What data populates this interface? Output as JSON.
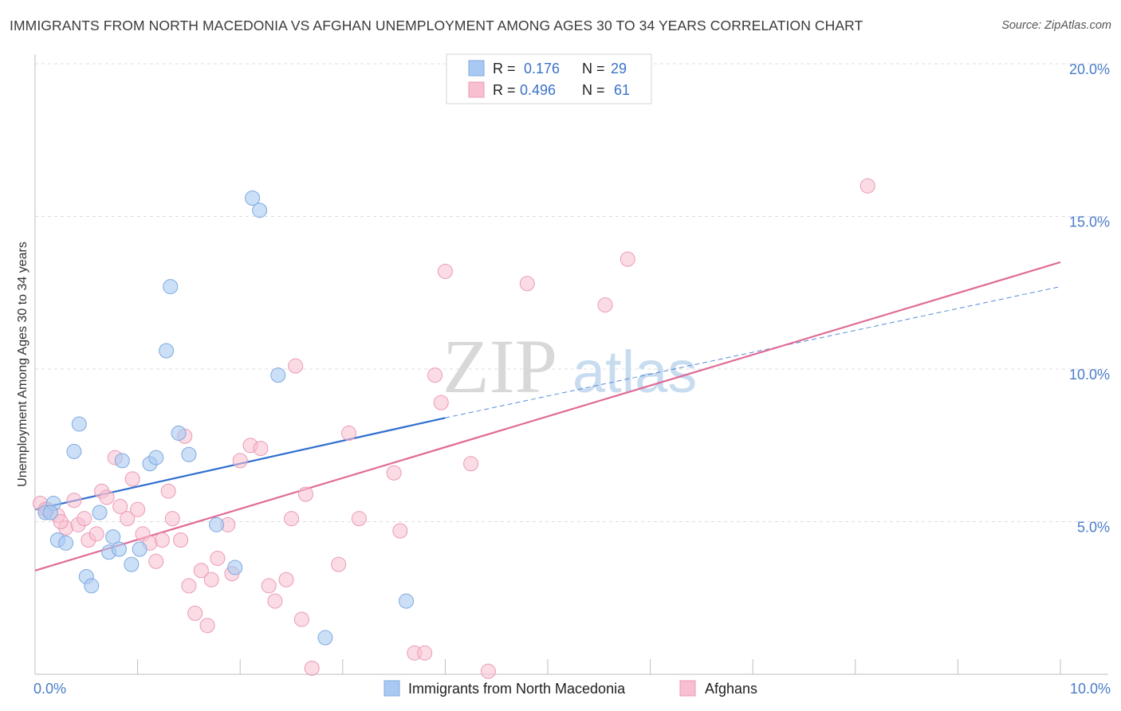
{
  "title": "IMMIGRANTS FROM NORTH MACEDONIA VS AFGHAN UNEMPLOYMENT AMONG AGES 30 TO 34 YEARS CORRELATION CHART",
  "source": "Source: ZipAtlas.com",
  "watermark": {
    "part1": "ZIP",
    "part2": "atlas"
  },
  "colors": {
    "blue_fill": "#a9c9f2",
    "blue_stroke": "#7fa9df",
    "blue_line": "#2f6fce",
    "pink_fill": "#f7bfd0",
    "pink_stroke": "#eb9ab5",
    "pink_line": "#e06b96",
    "tick_label": "#4a7cc9",
    "grid": "#dcdcdc"
  },
  "chart_data": {
    "type": "scatter",
    "title": "IMMIGRANTS FROM NORTH MACEDONIA VS AFGHAN UNEMPLOYMENT AMONG AGES 30 TO 34 YEARS CORRELATION CHART",
    "xlabel": "",
    "ylabel": "Unemployment Among Ages 30 to 34 years",
    "xlim": [
      0,
      10
    ],
    "ylim": [
      0,
      20
    ],
    "x_tick_labels": [
      {
        "value": 0,
        "label": "0.0%"
      },
      {
        "value": 10,
        "label": "10.0%"
      }
    ],
    "y_tick_labels": [
      {
        "value": 5,
        "label": "5.0%"
      },
      {
        "value": 10,
        "label": "10.0%"
      },
      {
        "value": 15,
        "label": "15.0%"
      },
      {
        "value": 20,
        "label": "20.0%"
      }
    ],
    "legend_top": [
      {
        "r_label": "R =",
        "r_value": "0.176",
        "n_label": "N =",
        "n_value": "29"
      },
      {
        "r_label": "R =",
        "r_value": "0.496",
        "n_label": "N =",
        "n_value": "61"
      }
    ],
    "series": [
      {
        "name": "Immigrants from North Macedonia",
        "color": "#a9c9f2",
        "points": [
          [
            0.1,
            5.3
          ],
          [
            0.18,
            5.6
          ],
          [
            0.15,
            5.3
          ],
          [
            0.38,
            7.3
          ],
          [
            0.43,
            8.2
          ],
          [
            0.22,
            4.4
          ],
          [
            0.3,
            4.3
          ],
          [
            0.5,
            3.2
          ],
          [
            0.55,
            2.9
          ],
          [
            0.63,
            5.3
          ],
          [
            0.72,
            4.0
          ],
          [
            0.76,
            4.5
          ],
          [
            0.82,
            4.1
          ],
          [
            0.85,
            7.0
          ],
          [
            0.94,
            3.6
          ],
          [
            1.02,
            4.1
          ],
          [
            1.12,
            6.9
          ],
          [
            1.18,
            7.1
          ],
          [
            1.28,
            10.6
          ],
          [
            1.32,
            12.7
          ],
          [
            1.4,
            7.9
          ],
          [
            1.5,
            7.2
          ],
          [
            1.77,
            4.9
          ],
          [
            1.95,
            3.5
          ],
          [
            2.12,
            15.6
          ],
          [
            2.19,
            15.2
          ],
          [
            2.37,
            9.8
          ],
          [
            2.83,
            1.2
          ],
          [
            3.62,
            2.4
          ]
        ],
        "trend": {
          "x": [
            0,
            4.0
          ],
          "y": [
            5.4,
            8.4
          ],
          "dashed_extension": {
            "x": [
              4.0,
              10.0
            ],
            "y": [
              8.4,
              12.7
            ]
          }
        }
      },
      {
        "name": "Afghans",
        "color": "#f7bfd0",
        "points": [
          [
            0.05,
            5.6
          ],
          [
            0.12,
            5.4
          ],
          [
            0.22,
            5.2
          ],
          [
            0.3,
            4.8
          ],
          [
            0.38,
            5.7
          ],
          [
            0.42,
            4.9
          ],
          [
            0.48,
            5.1
          ],
          [
            0.52,
            4.4
          ],
          [
            0.6,
            4.6
          ],
          [
            0.65,
            6.0
          ],
          [
            0.7,
            5.8
          ],
          [
            0.78,
            7.1
          ],
          [
            0.83,
            5.5
          ],
          [
            0.9,
            5.1
          ],
          [
            0.95,
            6.4
          ],
          [
            1.0,
            5.4
          ],
          [
            1.05,
            4.6
          ],
          [
            1.12,
            4.3
          ],
          [
            1.18,
            3.7
          ],
          [
            1.24,
            4.4
          ],
          [
            1.3,
            6.0
          ],
          [
            1.34,
            5.1
          ],
          [
            1.42,
            4.4
          ],
          [
            1.46,
            7.8
          ],
          [
            1.5,
            2.9
          ],
          [
            1.56,
            2.0
          ],
          [
            1.62,
            3.4
          ],
          [
            1.68,
            1.6
          ],
          [
            1.72,
            3.1
          ],
          [
            1.78,
            3.8
          ],
          [
            1.88,
            4.9
          ],
          [
            1.92,
            3.3
          ],
          [
            2.0,
            7.0
          ],
          [
            2.1,
            7.5
          ],
          [
            2.2,
            7.4
          ],
          [
            2.28,
            2.9
          ],
          [
            2.34,
            2.4
          ],
          [
            2.45,
            3.1
          ],
          [
            2.5,
            5.1
          ],
          [
            2.54,
            10.1
          ],
          [
            2.6,
            1.8
          ],
          [
            2.64,
            5.9
          ],
          [
            2.7,
            0.2
          ],
          [
            2.96,
            3.6
          ],
          [
            3.06,
            7.9
          ],
          [
            3.16,
            5.1
          ],
          [
            3.5,
            6.6
          ],
          [
            3.56,
            4.7
          ],
          [
            3.7,
            0.7
          ],
          [
            3.8,
            0.7
          ],
          [
            3.9,
            9.8
          ],
          [
            3.96,
            8.9
          ],
          [
            4.0,
            13.2
          ],
          [
            4.25,
            6.9
          ],
          [
            4.42,
            0.1
          ],
          [
            4.8,
            12.8
          ],
          [
            5.56,
            12.1
          ],
          [
            5.78,
            13.6
          ],
          [
            8.12,
            16.0
          ],
          [
            0.1,
            5.4
          ],
          [
            0.25,
            5.0
          ]
        ],
        "trend": {
          "x": [
            0,
            10.0
          ],
          "y": [
            3.4,
            13.5
          ]
        }
      }
    ]
  },
  "legend_bottom": [
    {
      "label": "Immigrants from North Macedonia"
    },
    {
      "label": "Afghans"
    }
  ]
}
